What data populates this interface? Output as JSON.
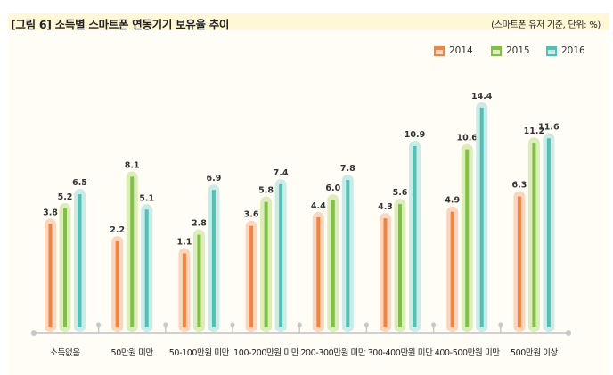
{
  "header": {
    "title": "[그림 6]  소득별 스마트폰 연동기기 보유율 추이",
    "unit": "(스마트폰 유저 기준, 단위: %)"
  },
  "colors": {
    "2014": [
      "#f4833f",
      "#fad6bf"
    ],
    "2015": [
      "#7fc241",
      "#dcecbb"
    ],
    "2016": [
      "#4fc2b6",
      "#cbebe6"
    ]
  },
  "chart_data": {
    "type": "bar",
    "title": "소득별 스마트폰 연동기기 보유율 추이",
    "ylabel": "%",
    "categories": [
      "소득없음",
      "50만원 미만",
      "50-100만원 미만",
      "100-200만원 미만",
      "200-300만원 미만",
      "300-400만원 미만",
      "400-500만원 미만",
      "500만원 이상"
    ],
    "series": [
      {
        "name": "2014",
        "values": [
          3.8,
          2.2,
          1.1,
          3.6,
          4.4,
          4.3,
          4.9,
          6.3
        ]
      },
      {
        "name": "2015",
        "values": [
          5.2,
          8.1,
          2.8,
          5.8,
          6.0,
          5.6,
          10.6,
          11.2
        ]
      },
      {
        "name": "2016",
        "values": [
          6.5,
          5.1,
          6.9,
          7.4,
          7.8,
          10.9,
          14.4,
          11.6
        ]
      }
    ],
    "legend": "top-right",
    "grid": false
  }
}
